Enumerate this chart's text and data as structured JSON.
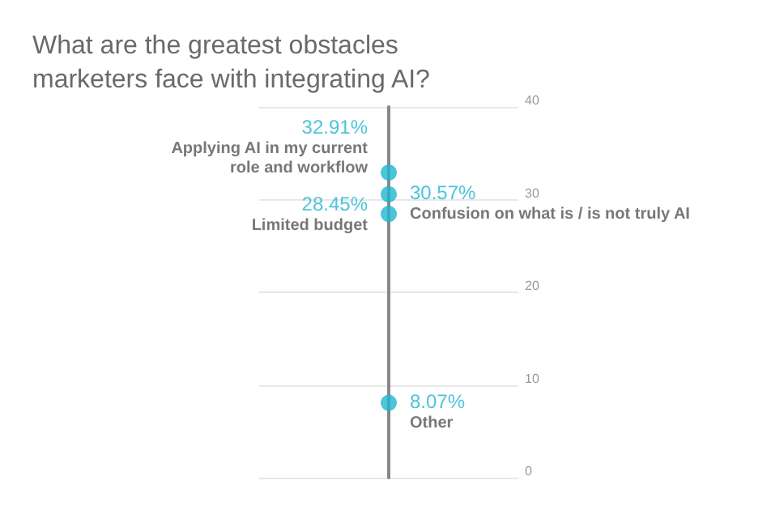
{
  "chart_data": {
    "type": "scatter",
    "title": "What are the greatest obstacles marketers face with integrating AI?",
    "categories": [
      null
    ],
    "series": [
      {
        "name": "Applying AI in my current role and workflow",
        "color": "#1fb5d0",
        "values": [
          32.91
        ],
        "value_labels": [
          "32.91%"
        ]
      },
      {
        "name": "Confusion on what is / is not truly AI",
        "color": "#1fb5d0",
        "values": [
          30.57
        ],
        "value_labels": [
          "30.57%"
        ]
      },
      {
        "name": "Limited budget",
        "color": "#1fb5d0",
        "values": [
          28.45
        ],
        "value_labels": [
          "28.45%"
        ]
      },
      {
        "name": "Other",
        "color": "#1fb5d0",
        "values": [
          8.07
        ],
        "value_labels": [
          "8.07%"
        ]
      }
    ],
    "ylim": [
      0,
      40
    ],
    "yticks": [
      0,
      10,
      20,
      30,
      40
    ],
    "grid": "y",
    "tick_labels": "y",
    "legend": false,
    "marker": "circle"
  }
}
